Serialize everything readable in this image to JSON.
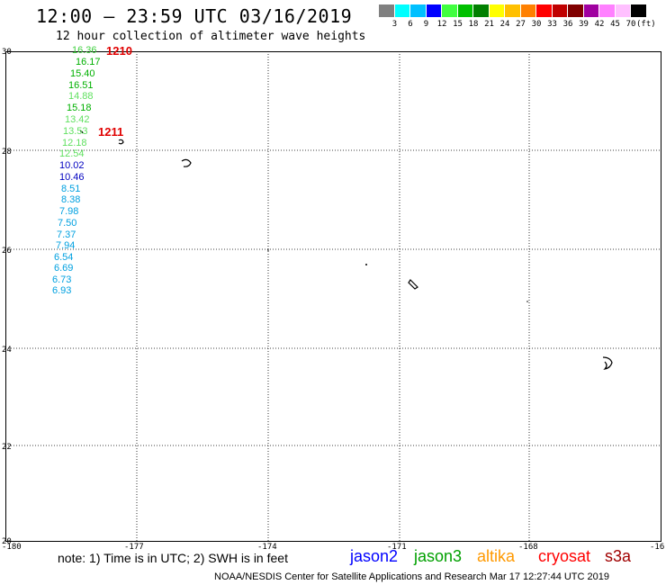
{
  "header": {
    "title": "12:00 – 23:59 UTC 03/16/2019",
    "subtitle": "12 hour collection of altimeter wave heights"
  },
  "colorbar": {
    "colors": [
      "#808080",
      "#00ffff",
      "#00c0ff",
      "#0000ff",
      "#40ff40",
      "#00c000",
      "#008000",
      "#ffff00",
      "#ffc000",
      "#ff8000",
      "#ff0000",
      "#c00000",
      "#800000",
      "#a000a0",
      "#ff80ff",
      "#ffc0ff",
      "#000000"
    ],
    "labels": [
      "3",
      "6",
      "9",
      "12",
      "15",
      "18",
      "21",
      "24",
      "27",
      "30",
      "33",
      "36",
      "39",
      "42",
      "45",
      "70",
      "(ft)"
    ]
  },
  "map": {
    "lat_labels": [
      "30",
      "28",
      "26",
      "24",
      "22",
      "20"
    ],
    "lon_labels": [
      "-180",
      "-177",
      "-174",
      "-171",
      "-168",
      "-16"
    ]
  },
  "passes": [
    {
      "label": "1210"
    },
    {
      "label": "1211"
    }
  ],
  "observations": [
    {
      "value": "16.36",
      "color": "#40d040"
    },
    {
      "value": "16.17",
      "color": "#00b000"
    },
    {
      "value": "15.40",
      "color": "#00b000"
    },
    {
      "value": "16.51",
      "color": "#00b000"
    },
    {
      "value": "14.88",
      "color": "#60e060"
    },
    {
      "value": "15.18",
      "color": "#00b000"
    },
    {
      "value": "13.42",
      "color": "#60e060"
    },
    {
      "value": "13.53",
      "color": "#60e060"
    },
    {
      "value": "12.18",
      "color": "#60e060"
    },
    {
      "value": "12.54",
      "color": "#60e060"
    },
    {
      "value": "10.02",
      "color": "#0000c0"
    },
    {
      "value": "10.46",
      "color": "#0000c0"
    },
    {
      "value": "8.51",
      "color": "#00a0e0"
    },
    {
      "value": "8.38",
      "color": "#00a0e0"
    },
    {
      "value": "7.98",
      "color": "#00a0e0"
    },
    {
      "value": "7.50",
      "color": "#00a0e0"
    },
    {
      "value": "7.37",
      "color": "#00a0e0"
    },
    {
      "value": "7.94",
      "color": "#00a0e0"
    },
    {
      "value": "6.54",
      "color": "#00a0e0"
    },
    {
      "value": "6.69",
      "color": "#00a0e0"
    },
    {
      "value": "6.73",
      "color": "#00a0e0"
    },
    {
      "value": "6.93",
      "color": "#00a0e0"
    }
  ],
  "footer": {
    "note": "note:  1) Time is in UTC;  2) SWH is in feet",
    "satellites": [
      {
        "name": "jason2",
        "color": "#0000ff"
      },
      {
        "name": "jason3",
        "color": "#00a000"
      },
      {
        "name": "altika",
        "color": "#ff9900"
      },
      {
        "name": "cryosat",
        "color": "#ff0000"
      },
      {
        "name": "s3a",
        "color": "#a00000"
      }
    ],
    "credit": "NOAA/NESDIS Center for Satellite Applications and Research    Mar 17 12:27:44 UTC 2019"
  }
}
